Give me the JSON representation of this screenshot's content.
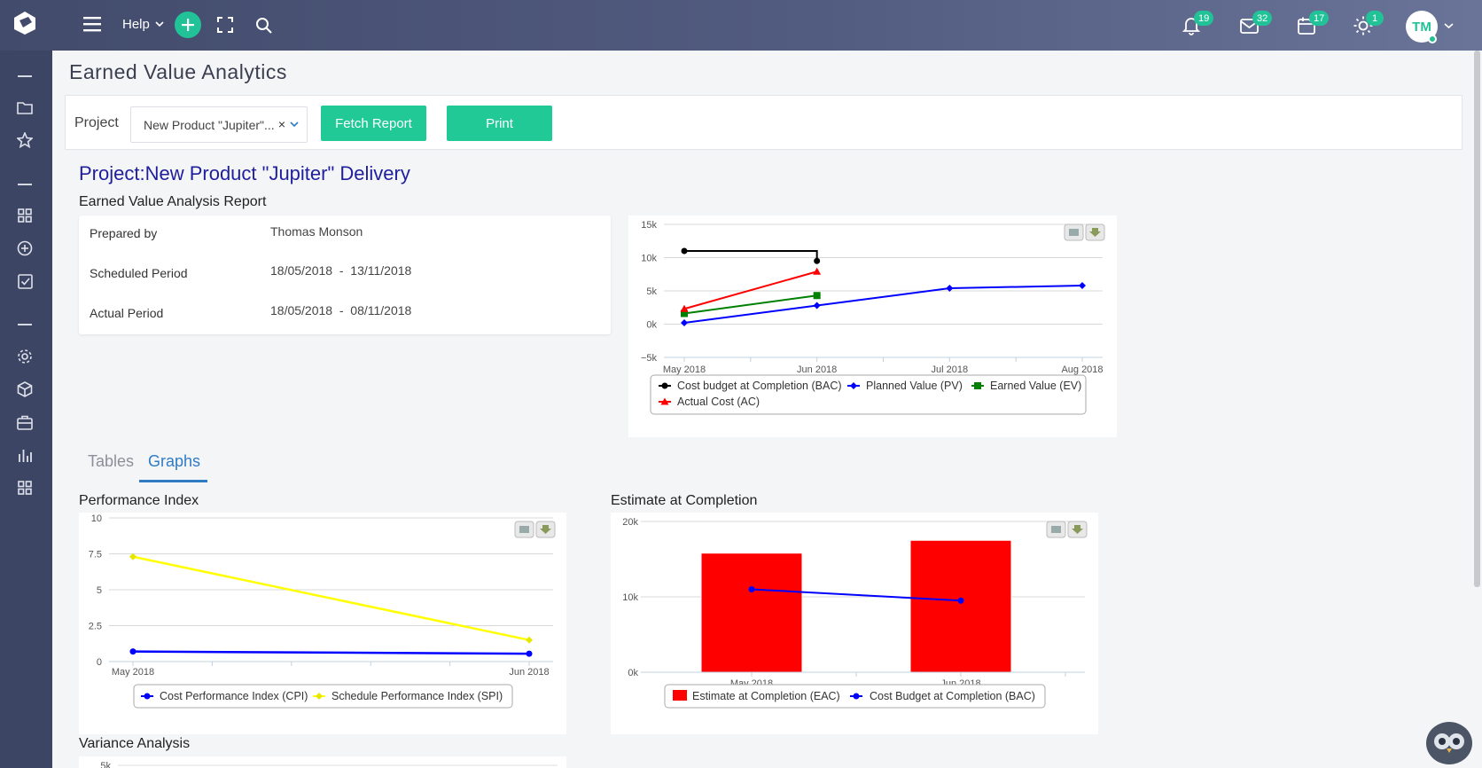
{
  "app": {
    "help_label": "Help",
    "notifications": {
      "count": "19"
    },
    "messages": {
      "count": "32"
    },
    "calendar": {
      "count": "17"
    },
    "updates": {
      "count": "1"
    },
    "user_initials": "TM",
    "accent": "#21c997"
  },
  "page": {
    "title": "Earned Value Analytics",
    "project_label": "Project",
    "project_value": "New Product \"Jupiter\"...",
    "clear_symbol": "×",
    "fetch_label": "Fetch Report",
    "print_label": "Print",
    "project_heading": "Project:New Product \"Jupiter\" Delivery",
    "report_title": "Earned Value Analysis Report"
  },
  "report": {
    "rows": [
      {
        "label": "Prepared by",
        "value": "Thomas Monson"
      },
      {
        "label": "Scheduled Period",
        "value": "18/05/2018  -  13/11/2018"
      },
      {
        "label": "Actual Period",
        "value": "18/05/2018  -  08/11/2018"
      }
    ]
  },
  "tabs": [
    {
      "label": "Tables",
      "active": false
    },
    {
      "label": "Graphs",
      "active": true
    }
  ],
  "sections": {
    "performance": "Performance Index",
    "eac": "Estimate at Completion",
    "variance": "Variance Analysis"
  },
  "chart_data": [
    {
      "type": "line",
      "title": "",
      "categories": [
        "May 2018",
        "Jun 2018",
        "Jul 2018",
        "Aug 2018"
      ],
      "y_ticks": [
        "15k",
        "10k",
        "5k",
        "0k",
        "−5k"
      ],
      "ylim": [
        -5000,
        15000
      ],
      "grid": true,
      "legend": "bottom",
      "series": [
        {
          "name": "Cost budget at Completion (BAC)",
          "color": "#000000",
          "marker": "circle",
          "step": true,
          "values": [
            11000,
            9500,
            null,
            null
          ]
        },
        {
          "name": "Planned Value (PV)",
          "color": "#0000ff",
          "marker": "diamond",
          "values": [
            200,
            2800,
            5400,
            5800
          ]
        },
        {
          "name": "Earned Value (EV)",
          "color": "#008000",
          "marker": "square",
          "values": [
            1600,
            4300,
            null,
            null
          ]
        },
        {
          "name": "Actual Cost (AC)",
          "color": "#ff0000",
          "marker": "triangle",
          "values": [
            2300,
            7900,
            null,
            null
          ]
        }
      ]
    },
    {
      "type": "line",
      "title": "",
      "categories": [
        "May 2018",
        "Jun 2018"
      ],
      "y_ticks": [
        "10",
        "7.5",
        "5",
        "2.5",
        "0"
      ],
      "ylim": [
        0,
        10
      ],
      "grid": true,
      "legend": "bottom",
      "series": [
        {
          "name": "Cost Performance Index (CPI)",
          "color": "#0000ff",
          "marker": "circle",
          "values": [
            0.7,
            0.55
          ]
        },
        {
          "name": "Schedule Performance Index (SPI)",
          "color": "#ffff00",
          "marker": "diamond",
          "values": [
            7.3,
            1.5
          ]
        }
      ]
    },
    {
      "type": "bar",
      "title": "",
      "categories": [
        "May 2018",
        "Jun 2018"
      ],
      "y_ticks": [
        "20k",
        "10k",
        "0k"
      ],
      "ylim": [
        0,
        20000
      ],
      "grid": true,
      "legend": "bottom",
      "series": [
        {
          "name": "Estimate at Completion (EAC)",
          "color": "#ff0000",
          "kind": "bar",
          "values": [
            15800,
            17500
          ]
        },
        {
          "name": "Cost Budget at Completion (BAC)",
          "color": "#0000ff",
          "kind": "line",
          "marker": "circle",
          "values": [
            11000,
            9500
          ]
        }
      ]
    },
    {
      "type": "line",
      "title": "",
      "categories": [],
      "y_ticks": [
        "5k"
      ],
      "series": []
    }
  ]
}
